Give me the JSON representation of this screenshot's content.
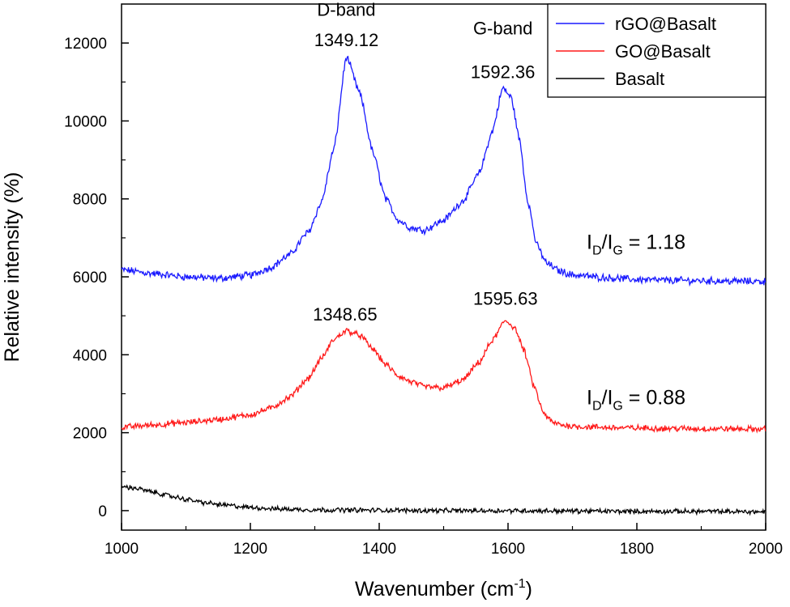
{
  "chart_data": {
    "type": "line",
    "title": "",
    "xlabel": "Wavenumber (cm",
    "xlabel_sup": "-1",
    "xlabel_close": ")",
    "ylabel": "Relative intensity (%)",
    "xlim": [
      1000,
      2000
    ],
    "ylim": [
      -500,
      13000
    ],
    "xticks": [
      1000,
      1200,
      1400,
      1600,
      1800,
      2000
    ],
    "yticks": [
      0,
      2000,
      4000,
      6000,
      8000,
      10000,
      12000
    ],
    "colors": {
      "rgo": "#1a1aff",
      "go": "#ff1a1a",
      "basalt": "#000000"
    },
    "legend": [
      {
        "name": "rGO@Basalt",
        "color": "#1a1aff"
      },
      {
        "name": "GO@Basalt",
        "color": "#ff1a1a"
      },
      {
        "name": "Basalt",
        "color": "#000000"
      }
    ],
    "series": [
      {
        "name": "rGO@Basalt",
        "color": "#1a1aff",
        "x": [
          1000,
          1050,
          1100,
          1150,
          1200,
          1230,
          1260,
          1290,
          1310,
          1330,
          1349,
          1370,
          1390,
          1410,
          1430,
          1450,
          1470,
          1500,
          1530,
          1555,
          1575,
          1592,
          1605,
          1618,
          1630,
          1645,
          1660,
          1680,
          1700,
          1750,
          1800,
          1850,
          1900,
          1950,
          2000
        ],
        "y": [
          6180,
          6080,
          6000,
          5960,
          6040,
          6230,
          6550,
          7150,
          7900,
          9300,
          11650,
          10700,
          9200,
          8000,
          7450,
          7250,
          7200,
          7450,
          7950,
          8650,
          9700,
          10850,
          10600,
          9500,
          8000,
          6800,
          6350,
          6150,
          6050,
          5980,
          5930,
          5910,
          5900,
          5890,
          5880
        ]
      },
      {
        "name": "GO@Basalt",
        "color": "#ff1a1a",
        "x": [
          1000,
          1050,
          1100,
          1150,
          1200,
          1230,
          1260,
          1290,
          1310,
          1330,
          1349,
          1370,
          1390,
          1410,
          1430,
          1450,
          1470,
          1500,
          1530,
          1555,
          1575,
          1596,
          1610,
          1625,
          1640,
          1655,
          1670,
          1690,
          1720,
          1760,
          1800,
          1850,
          1900,
          1950,
          2000
        ],
        "y": [
          2140,
          2200,
          2260,
          2340,
          2460,
          2620,
          2900,
          3400,
          3900,
          4400,
          4620,
          4500,
          4150,
          3750,
          3450,
          3300,
          3180,
          3150,
          3350,
          3800,
          4350,
          4880,
          4700,
          4100,
          3200,
          2500,
          2250,
          2180,
          2150,
          2130,
          2120,
          2110,
          2100,
          2100,
          2090
        ]
      },
      {
        "name": "Basalt",
        "color": "#000000",
        "x": [
          1000,
          1020,
          1050,
          1080,
          1100,
          1130,
          1160,
          1200,
          1250,
          1300,
          1400,
          1500,
          1600,
          1700,
          1800,
          1900,
          2000
        ],
        "y": [
          620,
          580,
          470,
          360,
          290,
          200,
          140,
          80,
          40,
          20,
          10,
          0,
          0,
          -10,
          -20,
          -20,
          -30
        ]
      }
    ],
    "annotations": [
      {
        "text": "D-band",
        "x": 1349,
        "y": 12700
      },
      {
        "text": "1349.12",
        "x": 1349,
        "y": 11920
      },
      {
        "text": "G-band",
        "x": 1592,
        "y": 12220
      },
      {
        "text": "1592.36",
        "x": 1592,
        "y": 11100
      },
      {
        "text": "1348.65",
        "x": 1347,
        "y": 4880
      },
      {
        "text": "1595.63",
        "x": 1596,
        "y": 5280
      }
    ],
    "ratios": [
      {
        "label": "rGO@Basalt",
        "value": "1.18",
        "x": 1722,
        "y": 6720
      },
      {
        "label": "GO@Basalt",
        "value": "0.88",
        "x": 1722,
        "y": 2730
      }
    ],
    "ratio_main": "I",
    "ratio_sub_d": "D",
    "ratio_slash": "/I",
    "ratio_sub_g": "G",
    "ratio_eq": " = "
  }
}
